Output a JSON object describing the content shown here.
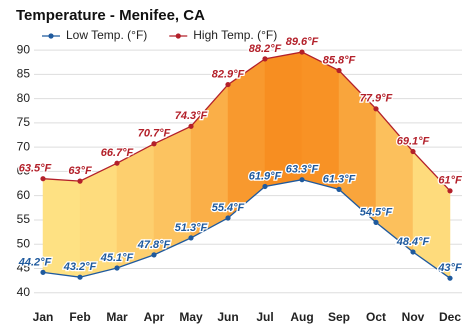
{
  "chart_data": {
    "type": "line",
    "title": "Temperature - Menifee, CA",
    "categories": [
      "Jan",
      "Feb",
      "Mar",
      "Apr",
      "May",
      "Jun",
      "Jul",
      "Aug",
      "Sep",
      "Oct",
      "Nov",
      "Dec"
    ],
    "series": [
      {
        "name": "Low Temp. (°F)",
        "color": "#1f5a9e",
        "values": [
          44.2,
          43.2,
          45.1,
          47.8,
          51.3,
          55.4,
          61.9,
          63.3,
          61.3,
          54.5,
          48.4,
          43
        ],
        "value_labels": [
          "44.2°F",
          "43.2°F",
          "45.1°F",
          "47.8°F",
          "51.3°F",
          "55.4°F",
          "61.9°F",
          "63.3°F",
          "61.3°F",
          "54.5°F",
          "48.4°F",
          "43°F"
        ]
      },
      {
        "name": "High Temp. (°F)",
        "color": "#b3202a",
        "values": [
          63.5,
          63,
          66.7,
          70.7,
          74.3,
          82.9,
          88.2,
          89.6,
          85.8,
          77.9,
          69.1,
          61
        ],
        "value_labels": [
          "63.5°F",
          "63°F",
          "66.7°F",
          "70.7°F",
          "74.3°F",
          "82.9°F",
          "88.2°F",
          "89.6°F",
          "85.8°F",
          "77.9°F",
          "69.1°F",
          "61°F"
        ]
      }
    ],
    "ylim": [
      38.5,
      92.5
    ],
    "yticks": [
      40,
      45,
      50,
      55,
      60,
      65,
      70,
      75,
      80,
      85,
      90
    ],
    "grid": true,
    "legend": "top-left"
  }
}
